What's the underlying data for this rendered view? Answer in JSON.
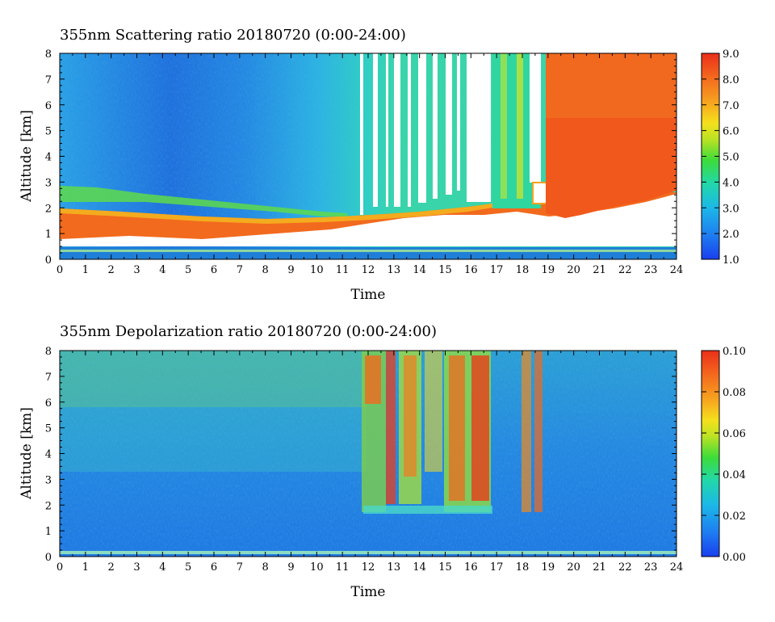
{
  "chart_data": [
    {
      "type": "heatmap",
      "title": "355nm Scattering ratio  20180720 (0:00-24:00)",
      "xlabel": "Time",
      "ylabel": "Altitude [km]",
      "x_ticks": [
        "0",
        "1",
        "2",
        "3",
        "4",
        "5",
        "6",
        "7",
        "8",
        "9",
        "10",
        "11",
        "12",
        "13",
        "14",
        "15",
        "16",
        "17",
        "18",
        "19",
        "20",
        "21",
        "22",
        "23",
        "24"
      ],
      "y_ticks": [
        "0",
        "1",
        "2",
        "3",
        "4",
        "5",
        "6",
        "7",
        "8"
      ],
      "xlim": [
        0,
        24
      ],
      "ylim": [
        0,
        8
      ],
      "colorbar": {
        "range": [
          1.0,
          9.0
        ],
        "ticks": [
          "1.0",
          "2.0",
          "3.0",
          "4.0",
          "5.0",
          "6.0",
          "7.0",
          "8.0",
          "9.0"
        ],
        "colormap": "rainbow"
      }
    },
    {
      "type": "heatmap",
      "title": "355nm Depolarization ratio  20180720 (0:00-24:00)",
      "xlabel": "Time",
      "ylabel": "Altitude [km]",
      "x_ticks": [
        "0",
        "1",
        "2",
        "3",
        "4",
        "5",
        "6",
        "7",
        "8",
        "9",
        "10",
        "11",
        "12",
        "13",
        "14",
        "15",
        "16",
        "17",
        "18",
        "19",
        "20",
        "21",
        "22",
        "23",
        "24"
      ],
      "y_ticks": [
        "0",
        "1",
        "2",
        "3",
        "4",
        "5",
        "6",
        "7",
        "8"
      ],
      "xlim": [
        0,
        24
      ],
      "ylim": [
        0,
        8
      ],
      "colorbar": {
        "range": [
          0.0,
          0.1
        ],
        "ticks": [
          "0.00",
          "0.02",
          "0.04",
          "0.06",
          "0.08",
          "0.10"
        ],
        "colormap": "rainbow"
      }
    }
  ]
}
